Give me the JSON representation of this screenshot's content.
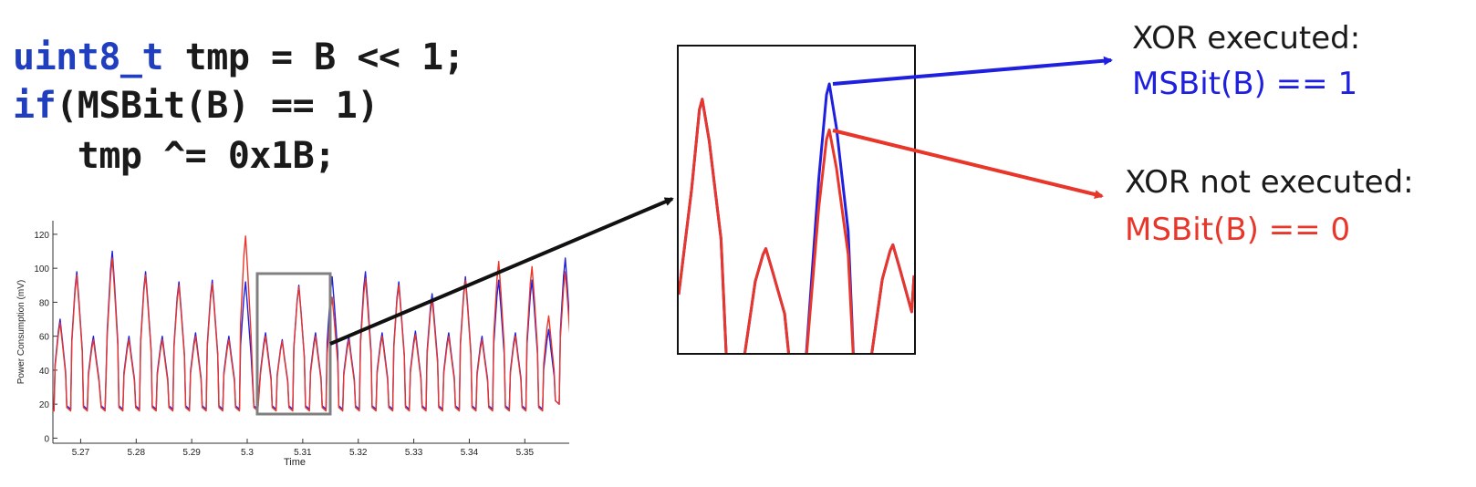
{
  "code": {
    "line1_kw": "uint8_t",
    "line1_rest": " tmp = B << 1;",
    "line2_kw": "if",
    "line2_rest": "(MSBit(B) == 1)",
    "line3": "   tmp ^= 0x1B;"
  },
  "annotations": {
    "xor_executed_title": "XOR executed:",
    "xor_executed_cond": "MSBit(B) == 1",
    "xor_not_executed_title": "XOR not executed:",
    "xor_not_executed_cond": "MSBit(B) == 0"
  },
  "colors": {
    "executed": "#1f1fe0",
    "not_executed": "#e8362a",
    "text": "#1a1a1a",
    "highlight_box": "#808080"
  },
  "chart_data": {
    "type": "line",
    "xlabel": "Time",
    "ylabel": "Power Consumption (mV)",
    "xlim": [
      5.265,
      5.358
    ],
    "ylim": [
      -3,
      128
    ],
    "xticks": [
      "5.27",
      "5.28",
      "5.29",
      "5.3",
      "5.31",
      "5.32",
      "5.33",
      "5.34",
      "5.35"
    ],
    "yticks": [
      "0",
      "20",
      "40",
      "60",
      "80",
      "100",
      "120"
    ],
    "peak_times": [
      5.2663,
      5.2693,
      5.2723,
      5.2757,
      5.2787,
      5.2817,
      5.2847,
      5.2877,
      5.2907,
      5.2937,
      5.2967,
      5.2997,
      5.3033,
      5.3063,
      5.3093,
      5.3123,
      5.3153,
      5.3183,
      5.3213,
      5.3243,
      5.3273,
      5.3303,
      5.3333,
      5.3363,
      5.3393,
      5.3423,
      5.3453,
      5.3483,
      5.3513,
      5.3543,
      5.3573
    ],
    "series": [
      {
        "name": "MSBit(B) == 1",
        "color": "#1f1fe0",
        "peaks": [
          70,
          98,
          60,
          110,
          60,
          98,
          60,
          92,
          62,
          93,
          60,
          92,
          62,
          58,
          90,
          62,
          95,
          60,
          98,
          62,
          92,
          63,
          85,
          62,
          95,
          60,
          93,
          62,
          93,
          64,
          106
        ],
        "troughs": [
          17,
          17,
          17,
          17,
          17,
          17,
          17,
          17,
          17,
          17,
          17,
          17,
          17,
          17,
          17,
          17,
          17,
          17,
          17,
          17,
          17,
          17,
          17,
          17,
          17,
          17,
          17,
          17,
          17,
          17,
          20
        ]
      },
      {
        "name": "MSBit(B) == 0",
        "color": "#e8362a",
        "peaks": [
          68,
          96,
          58,
          106,
          58,
          96,
          58,
          90,
          60,
          91,
          58,
          119,
          60,
          57,
          89,
          60,
          83,
          58,
          94,
          60,
          90,
          61,
          82,
          60,
          93,
          58,
          104,
          60,
          101,
          72,
          98
        ],
        "troughs": [
          16,
          16,
          16,
          16,
          16,
          16,
          16,
          16,
          16,
          16,
          16,
          16,
          16,
          16,
          16,
          16,
          16,
          16,
          16,
          16,
          16,
          16,
          16,
          16,
          16,
          16,
          16,
          16,
          16,
          16,
          20
        ]
      }
    ]
  },
  "zoom_data": {
    "type": "line",
    "segment": "Time 5.3030 to 5.3165 (highlighted window)",
    "series": [
      {
        "name": "MSBit(B) == 1",
        "color": "#1f1fe0",
        "peaks": [
          91,
          52,
          95,
          53
        ]
      },
      {
        "name": "MSBit(B) == 0",
        "color": "#e8362a",
        "peaks": [
          91,
          52,
          83,
          53
        ]
      }
    ]
  }
}
